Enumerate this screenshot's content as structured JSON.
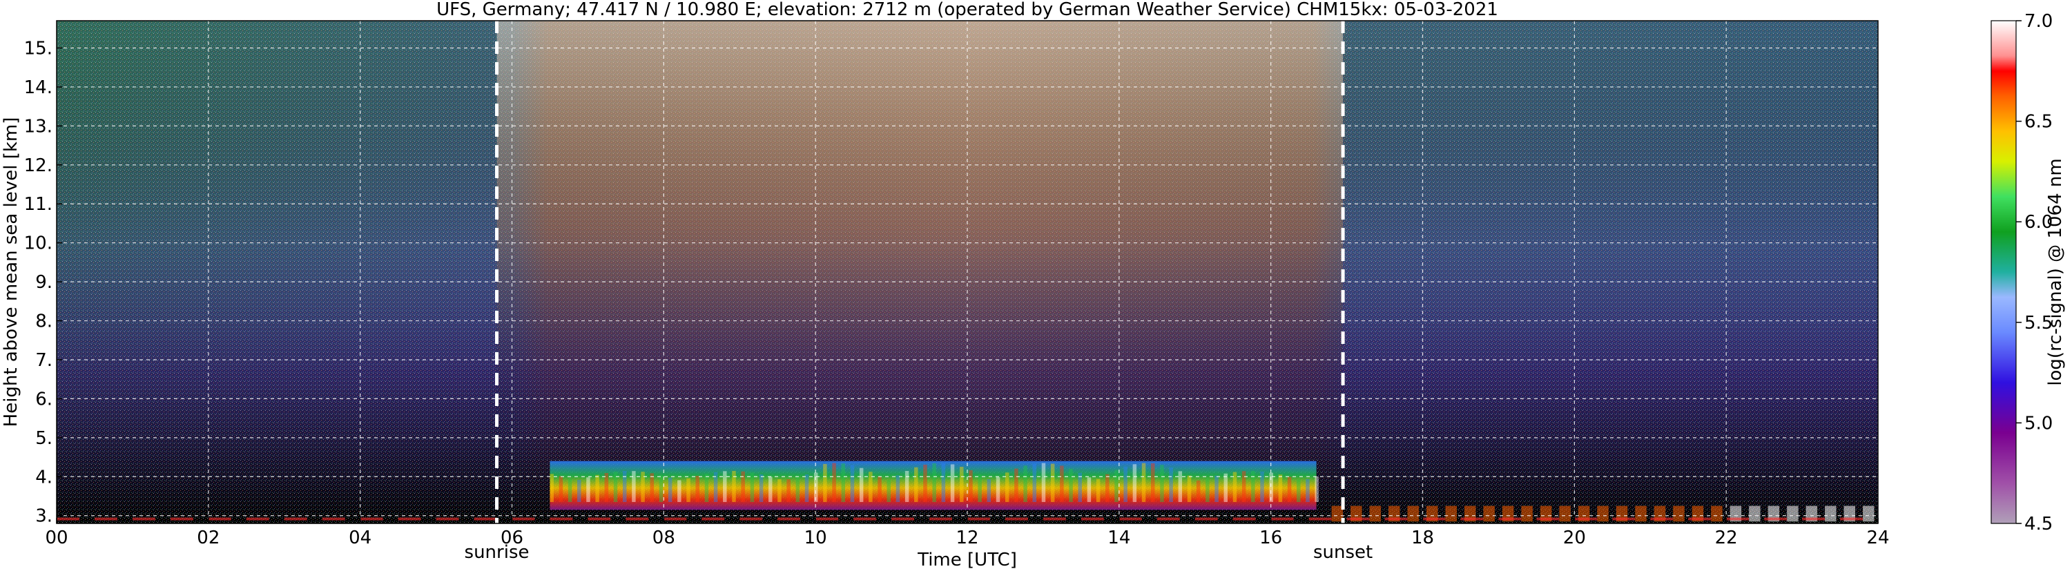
{
  "chart_data": {
    "type": "heatmap",
    "title": "UFS, Germany; 47.417 N / 10.980 E; elevation: 2712 m  (operated by German Weather Service)    CHM15kx: 05-03-2021",
    "xlabel": "Time [UTC]",
    "ylabel": "Height above mean sea level [km]",
    "xlim": [
      0,
      24
    ],
    "ylim": [
      2.8,
      15.7
    ],
    "x_ticks": [
      "00",
      "02",
      "04",
      "06",
      "08",
      "10",
      "12",
      "14",
      "16",
      "18",
      "20",
      "22",
      "24"
    ],
    "y_ticks": [
      "3.",
      "4.",
      "5.",
      "6.",
      "7.",
      "8.",
      "9.",
      "10.",
      "11.",
      "12.",
      "13.",
      "14.",
      "15."
    ],
    "grid": true,
    "colorbar": {
      "label": "log(rc-signal) @ 1064 nm",
      "range": [
        4.5,
        7.0
      ],
      "ticks": [
        "4.5",
        "5.0",
        "5.5",
        "6.0",
        "6.5",
        "7.0"
      ]
    },
    "annotations": [
      {
        "text": "sunrise",
        "x": 5.8
      },
      {
        "text": "sunset",
        "x": 16.95
      }
    ],
    "aerosol_layer": {
      "x_start": 6.5,
      "x_end": 16.6,
      "top_km": 4.4
    },
    "colors": {
      "background_night": "#000000",
      "low_signal": "#8a1a96",
      "mid_signal": "#1f4fff",
      "high_signal": "#22c24a",
      "peak_signal": "#ff1010",
      "saturation": "#ffffff",
      "grid": "#ffffff"
    }
  }
}
